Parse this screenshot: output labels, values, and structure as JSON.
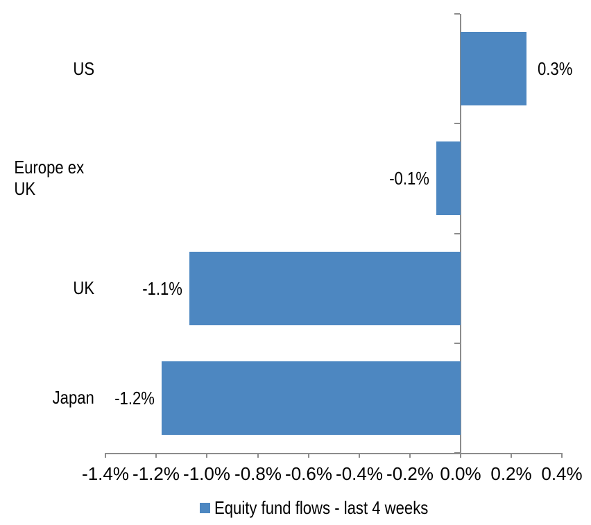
{
  "chart_data": {
    "type": "bar",
    "orientation": "horizontal",
    "title": "",
    "categories": [
      "US",
      "Europe ex UK",
      "UK",
      "Japan"
    ],
    "values": [
      0.3,
      -0.1,
      -1.1,
      -1.2
    ],
    "values_precise_pct": [
      0.26,
      -0.096,
      -1.07,
      -1.18
    ],
    "value_labels": [
      "0.3%",
      "-0.1%",
      "-1.1%",
      "-1.2%"
    ],
    "series_name": "Equity fund flows - last 4 weeks",
    "x_tick_labels": [
      "-1.4%",
      "-1.2%",
      "-1.0%",
      "-0.8%",
      "-0.6%",
      "-0.4%",
      "-0.2%",
      "0.0%",
      "0.2%",
      "0.4%"
    ],
    "x_ticks_pct": [
      -1.4,
      -1.2,
      -1.0,
      -0.8,
      -0.6,
      -0.4,
      -0.2,
      0.0,
      0.2,
      0.4
    ],
    "xlim": [
      -1.4,
      0.4
    ],
    "grid": false,
    "legend_position": "bottom",
    "colors": {
      "bar": "#4D87C1",
      "axis": "#8C8C8C",
      "text": "#000000",
      "background": "#FFFFFF"
    }
  },
  "legend": {
    "label": "Equity fund flows - last 4 weeks"
  }
}
